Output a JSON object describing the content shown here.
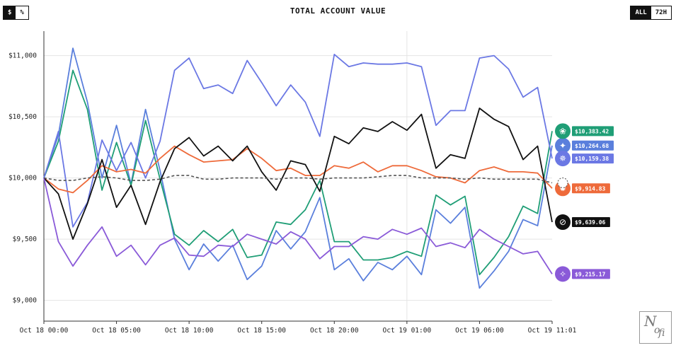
{
  "header": {
    "title": "TOTAL ACCOUNT VALUE",
    "unit_toggle": [
      {
        "label": "$",
        "active": true
      },
      {
        "label": "%",
        "active": false
      }
    ],
    "range_toggle": [
      {
        "label": "ALL",
        "active": true
      },
      {
        "label": "72H",
        "active": false
      }
    ]
  },
  "watermark": {
    "text": "Nofi"
  },
  "chart_data": {
    "type": "line",
    "title": "TOTAL ACCOUNT VALUE",
    "xlabel": "",
    "ylabel": "",
    "x_ticks": [
      "Oct 18 00:00",
      "Oct 18 05:00",
      "Oct 18 10:00",
      "Oct 18 15:00",
      "Oct 18 20:00",
      "Oct 19 01:00",
      "Oct 19 06:00",
      "Oct 19 11:01"
    ],
    "y_ticks": [
      "$9,000",
      "$9,500",
      "$10,000",
      "$10,500",
      "$11,000"
    ],
    "ylim": [
      8830,
      11200
    ],
    "x_range": [
      0,
      35
    ],
    "grid": true,
    "baseline": 10000,
    "series": [
      {
        "color": "#5a7fdc",
        "icon": "gemini-icon",
        "end_label": "$10,264.68",
        "values": [
          10000,
          10350,
          11060,
          10620,
          10000,
          10430,
          9950,
          10560,
          10060,
          9500,
          9250,
          9460,
          9320,
          9450,
          9170,
          9280,
          9570,
          9420,
          9560,
          9840,
          9250,
          9340,
          9160,
          9310,
          9250,
          9360,
          9210,
          9740,
          9630,
          9760,
          9100,
          9240,
          9400,
          9660,
          9610,
          10265
        ]
      },
      {
        "color": "#1f9e76",
        "icon": "gpt-icon",
        "end_label": "$10,383.42",
        "values": [
          10000,
          10300,
          10880,
          10560,
          9900,
          10290,
          9940,
          10470,
          9990,
          9540,
          9450,
          9570,
          9480,
          9580,
          9350,
          9370,
          9640,
          9620,
          9740,
          9980,
          9480,
          9480,
          9330,
          9330,
          9350,
          9400,
          9360,
          9860,
          9780,
          9850,
          9210,
          9350,
          9520,
          9770,
          9710,
          10383
        ]
      },
      {
        "color": "#6b78e4",
        "icon": "claude-icon",
        "end_label": "$10,159.38",
        "values": [
          10000,
          10380,
          9600,
          9800,
          10310,
          10060,
          10290,
          10000,
          10300,
          10880,
          10980,
          10730,
          10760,
          10690,
          10960,
          10780,
          10590,
          10760,
          10620,
          10340,
          11010,
          10910,
          10940,
          10930,
          10930,
          10940,
          10910,
          10430,
          10550,
          10550,
          10980,
          11000,
          10890,
          10660,
          10740,
          10159
        ]
      },
      {
        "color": "#ee6a3a",
        "icon": "grok-icon",
        "end_label": "$9,914.83",
        "values": [
          10000,
          9910,
          9880,
          9980,
          10100,
          10050,
          10070,
          10040,
          10160,
          10260,
          10190,
          10130,
          10140,
          10150,
          10240,
          10160,
          10060,
          10080,
          10020,
          10020,
          10100,
          10080,
          10130,
          10050,
          10100,
          10100,
          10060,
          10010,
          10000,
          9960,
          10060,
          10090,
          10050,
          10050,
          10040,
          9915
        ]
      },
      {
        "color": "#111111",
        "icon": "deepseek-icon",
        "end_label": "$9,639.06",
        "values": [
          10000,
          9870,
          9500,
          9790,
          10150,
          9760,
          9940,
          9620,
          9970,
          10240,
          10330,
          10180,
          10260,
          10140,
          10260,
          10050,
          9900,
          10140,
          10110,
          9890,
          10340,
          10280,
          10410,
          10380,
          10460,
          10390,
          10520,
          10080,
          10190,
          10160,
          10570,
          10480,
          10420,
          10150,
          10260,
          9639
        ]
      },
      {
        "color": "#8a5ad8",
        "icon": "qwen-icon",
        "end_label": "$9,215.17",
        "values": [
          10000,
          9480,
          9280,
          9450,
          9600,
          9360,
          9450,
          9290,
          9450,
          9510,
          9370,
          9360,
          9450,
          9440,
          9540,
          9500,
          9460,
          9560,
          9500,
          9340,
          9440,
          9440,
          9520,
          9500,
          9580,
          9540,
          9590,
          9440,
          9470,
          9430,
          9580,
          9500,
          9440,
          9380,
          9400,
          9215
        ]
      },
      {
        "color": "#555555",
        "icon": "",
        "end_label": "",
        "dashed": true,
        "values": [
          10000,
          9980,
          9980,
          10000,
          10010,
          10000,
          9980,
          9980,
          9990,
          10020,
          10020,
          9990,
          9990,
          10000,
          10000,
          10000,
          9990,
          10000,
          10000,
          9990,
          10000,
          10000,
          10000,
          10010,
          10020,
          10020,
          10000,
          10000,
          10000,
          9990,
          10000,
          9990,
          9990,
          9990,
          9990,
          9960
        ]
      }
    ]
  }
}
